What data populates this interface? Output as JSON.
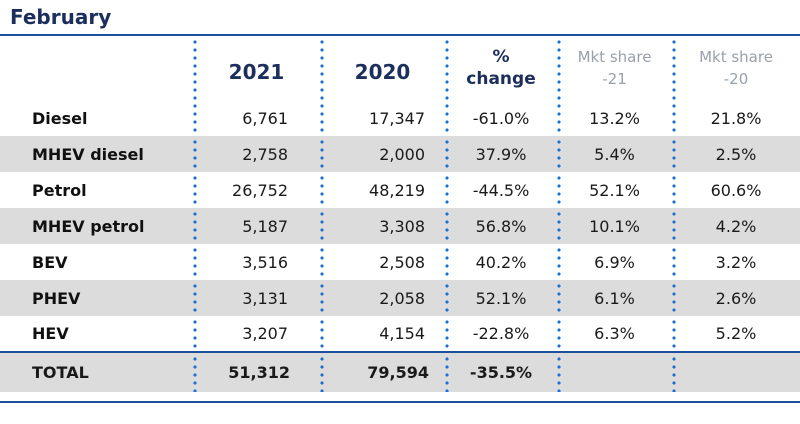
{
  "title": "February",
  "columns": {
    "year_a": "2021",
    "year_b": "2020",
    "pct_change": "% change",
    "mkt_share_a": "Mkt share -21",
    "mkt_share_b": "Mkt share -20"
  },
  "rows": [
    {
      "label": "Diesel",
      "v2021": "6,761",
      "v2020": "17,347",
      "change": "-61.0%",
      "share21": "13.2%",
      "share20": "21.8%"
    },
    {
      "label": "MHEV diesel",
      "v2021": "2,758",
      "v2020": "2,000",
      "change": "37.9%",
      "share21": "5.4%",
      "share20": "2.5%"
    },
    {
      "label": "Petrol",
      "v2021": "26,752",
      "v2020": "48,219",
      "change": "-44.5%",
      "share21": "52.1%",
      "share20": "60.6%"
    },
    {
      "label": "MHEV petrol",
      "v2021": "5,187",
      "v2020": "3,308",
      "change": "56.8%",
      "share21": "10.1%",
      "share20": "4.2%"
    },
    {
      "label": "BEV",
      "v2021": "3,516",
      "v2020": "2,508",
      "change": "40.2%",
      "share21": "6.9%",
      "share20": "3.2%"
    },
    {
      "label": "PHEV",
      "v2021": "3,131",
      "v2020": "2,058",
      "change": "52.1%",
      "share21": "6.1%",
      "share20": "2.6%"
    },
    {
      "label": "HEV",
      "v2021": "3,207",
      "v2020": "4,154",
      "change": "-22.8%",
      "share21": "6.3%",
      "share20": "5.2%"
    }
  ],
  "total": {
    "label": "TOTAL",
    "v2021": "51,312",
    "v2020": "79,594",
    "change": "-35.5%"
  }
}
